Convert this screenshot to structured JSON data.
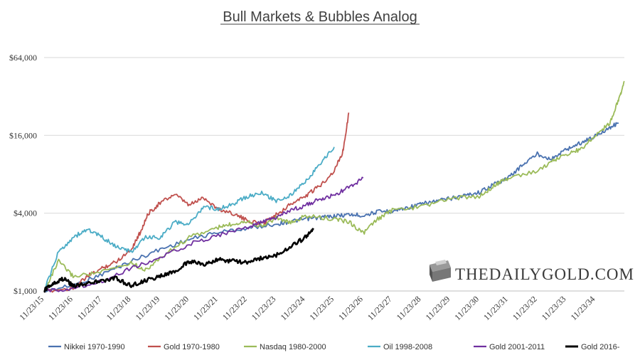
{
  "chart_data": {
    "type": "line",
    "title": "Bull Markets & Bubbles Analog",
    "y_scale": "log",
    "ylim": [
      1000,
      90000
    ],
    "y_ticks": [
      1000,
      4000,
      16000,
      64000
    ],
    "y_tick_labels": [
      "$1,000",
      "$4,000",
      "$16,000",
      "$64,000"
    ],
    "x_tick_labels": [
      "11/23/15",
      "11/23/16",
      "11/23/17",
      "11/23/18",
      "11/23/19",
      "11/23/20",
      "11/23/21",
      "11/23/22",
      "11/23/23",
      "11/23/24",
      "11/23/25",
      "11/23/26",
      "11/23/27",
      "11/23/28",
      "11/23/29",
      "11/23/30",
      "11/23/31",
      "11/23/32",
      "11/23/33",
      "11/23/34"
    ],
    "x_unit": "years after 11/23/15",
    "xlim": [
      0,
      20
    ],
    "grid": true,
    "legend_position": "bottom",
    "series": [
      {
        "name": "Nikkei 1970-1990",
        "color": "#4a72b0",
        "points": [
          [
            0,
            1000
          ],
          [
            1,
            1100
          ],
          [
            2,
            1350
          ],
          [
            3,
            1700
          ],
          [
            4,
            2100
          ],
          [
            5,
            2500
          ],
          [
            6,
            2850
          ],
          [
            7,
            3050
          ],
          [
            8,
            3300
          ],
          [
            8.5,
            3450
          ],
          [
            9,
            3600
          ],
          [
            9.5,
            3700
          ],
          [
            10,
            3800
          ],
          [
            10.5,
            3900
          ],
          [
            11,
            3850
          ],
          [
            11.5,
            4100
          ],
          [
            12,
            4150
          ],
          [
            12.5,
            4400
          ],
          [
            13,
            4700
          ],
          [
            13.5,
            4950
          ],
          [
            14,
            5200
          ],
          [
            14.5,
            5500
          ],
          [
            15,
            5800
          ],
          [
            15.5,
            6700
          ],
          [
            16,
            7500
          ],
          [
            16.5,
            9500
          ],
          [
            17,
            11500
          ],
          [
            17.5,
            10500
          ],
          [
            18,
            12500
          ],
          [
            18.5,
            14000
          ],
          [
            19,
            15800
          ],
          [
            19.5,
            18500
          ],
          [
            19.8,
            20000
          ]
        ]
      },
      {
        "name": "Gold 1970-1980",
        "color": "#c0504d",
        "points": [
          [
            0,
            1000
          ],
          [
            1,
            1050
          ],
          [
            1.5,
            1300
          ],
          [
            2,
            1500
          ],
          [
            2.5,
            1700
          ],
          [
            3,
            2100
          ],
          [
            3.3,
            2800
          ],
          [
            3.6,
            4000
          ],
          [
            4,
            4800
          ],
          [
            4.5,
            5600
          ],
          [
            5,
            4600
          ],
          [
            5.5,
            5300
          ],
          [
            6,
            4300
          ],
          [
            6.5,
            4000
          ],
          [
            7,
            3500
          ],
          [
            7.5,
            3300
          ],
          [
            8,
            3900
          ],
          [
            8.5,
            4700
          ],
          [
            9,
            5400
          ],
          [
            9.5,
            6500
          ],
          [
            10,
            8500
          ],
          [
            10.3,
            12000
          ],
          [
            10.5,
            24000
          ]
        ]
      },
      {
        "name": "Nasdaq 1980-2000",
        "color": "#9bbb59",
        "points": [
          [
            0,
            1000
          ],
          [
            0.5,
            1700
          ],
          [
            1,
            1300
          ],
          [
            2,
            1400
          ],
          [
            3,
            1650
          ],
          [
            3.5,
            1450
          ],
          [
            4,
            1800
          ],
          [
            5,
            2600
          ],
          [
            6,
            3100
          ],
          [
            6.5,
            3300
          ],
          [
            7,
            3500
          ],
          [
            7.5,
            3150
          ],
          [
            8,
            3700
          ],
          [
            8.5,
            3350
          ],
          [
            9,
            3800
          ],
          [
            10,
            3600
          ],
          [
            10.5,
            3450
          ],
          [
            11,
            2800
          ],
          [
            11.5,
            3600
          ],
          [
            12,
            4200
          ],
          [
            13,
            4500
          ],
          [
            14,
            5200
          ],
          [
            15,
            5400
          ],
          [
            15.5,
            6500
          ],
          [
            16,
            7500
          ],
          [
            17,
            8500
          ],
          [
            17.5,
            10000
          ],
          [
            18,
            11500
          ],
          [
            18.5,
            12500
          ],
          [
            19,
            16000
          ],
          [
            19.5,
            20000
          ],
          [
            19.8,
            30000
          ],
          [
            20,
            42000
          ]
        ]
      },
      {
        "name": "Oil 1998-2008",
        "color": "#4bacc6",
        "points": [
          [
            0,
            1000
          ],
          [
            0.5,
            2000
          ],
          [
            1,
            2600
          ],
          [
            1.5,
            3000
          ],
          [
            2,
            2600
          ],
          [
            2.5,
            2200
          ],
          [
            3,
            2000
          ],
          [
            3.5,
            2600
          ],
          [
            4,
            2600
          ],
          [
            4.5,
            3400
          ],
          [
            5,
            3300
          ],
          [
            5.5,
            4500
          ],
          [
            6,
            4300
          ],
          [
            6.5,
            4700
          ],
          [
            7,
            5400
          ],
          [
            7.5,
            5700
          ],
          [
            8,
            5000
          ],
          [
            8.5,
            5500
          ],
          [
            9,
            7000
          ],
          [
            9.5,
            9500
          ],
          [
            10,
            13000
          ]
        ]
      },
      {
        "name": "Gold 2001-2011",
        "color": "#7030a0",
        "points": [
          [
            0,
            1000
          ],
          [
            1,
            1050
          ],
          [
            2,
            1200
          ],
          [
            3,
            1500
          ],
          [
            4,
            1800
          ],
          [
            5,
            2300
          ],
          [
            6,
            2700
          ],
          [
            7,
            3100
          ],
          [
            7.5,
            3400
          ],
          [
            8,
            3700
          ],
          [
            8.5,
            4200
          ],
          [
            9,
            4600
          ],
          [
            9.5,
            5100
          ],
          [
            10,
            5500
          ],
          [
            10.5,
            6300
          ],
          [
            11,
            7500
          ]
        ]
      },
      {
        "name": "Gold 2016-",
        "color": "#000000",
        "points": [
          [
            0,
            1000
          ],
          [
            0.3,
            1150
          ],
          [
            0.7,
            1250
          ],
          [
            1,
            1100
          ],
          [
            1.5,
            1150
          ],
          [
            2,
            1200
          ],
          [
            2.5,
            1250
          ],
          [
            3,
            1100
          ],
          [
            3.5,
            1200
          ],
          [
            4,
            1300
          ],
          [
            4.5,
            1400
          ],
          [
            5,
            1700
          ],
          [
            5.5,
            1600
          ],
          [
            6,
            1750
          ],
          [
            6.5,
            1700
          ],
          [
            7,
            1650
          ],
          [
            7.5,
            1800
          ],
          [
            8,
            1900
          ],
          [
            8.5,
            2200
          ],
          [
            9,
            2600
          ],
          [
            9.3,
            3000
          ]
        ]
      }
    ]
  },
  "logo": {
    "text": "THEDAILYGOLD.COM"
  }
}
